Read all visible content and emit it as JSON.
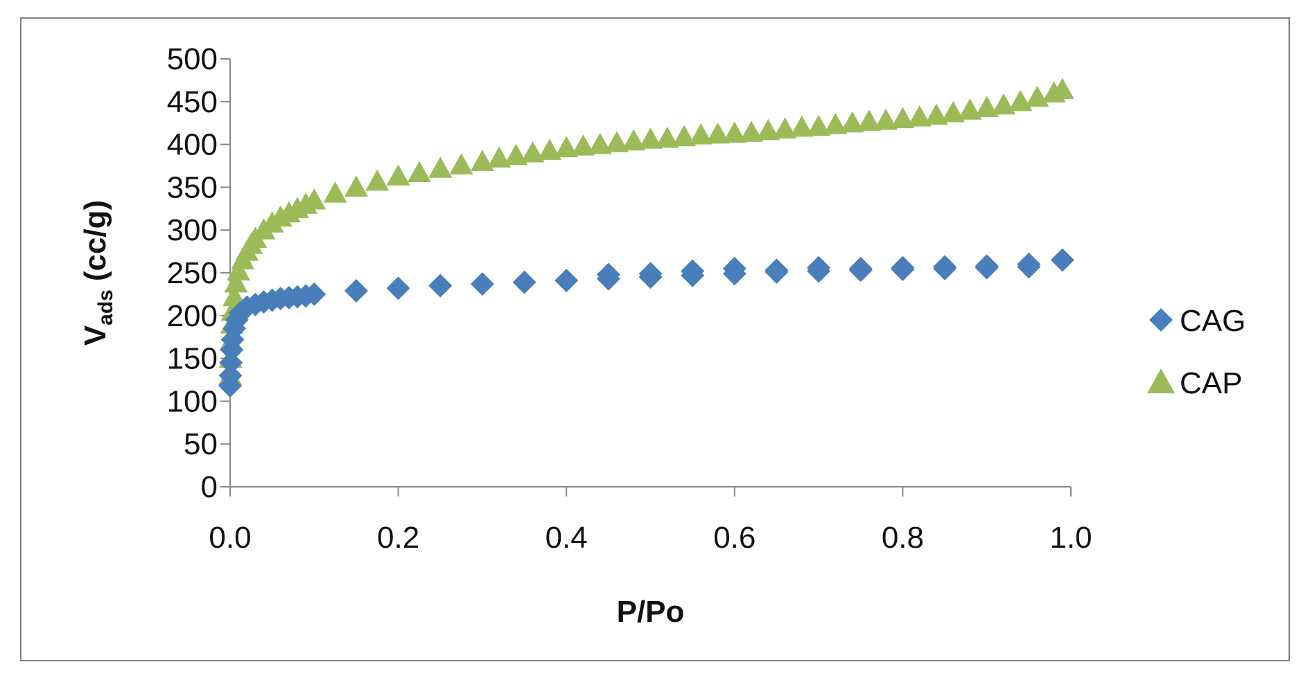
{
  "chart_data": {
    "type": "scatter",
    "xlabel": "P/Po",
    "ylabel": {
      "main": "V",
      "sub": "ads",
      "unit": "(cc/g)"
    },
    "xlim": [
      0,
      1
    ],
    "ylim": [
      0,
      500
    ],
    "x_ticks": [
      "0.0",
      "0.2",
      "0.4",
      "0.6",
      "0.8",
      "1.0"
    ],
    "y_ticks": [
      "0",
      "50",
      "100",
      "150",
      "200",
      "250",
      "300",
      "350",
      "400",
      "450",
      "500"
    ],
    "legend_position": "right",
    "grid": false,
    "series": [
      {
        "name": "CAG",
        "marker": "diamond",
        "color": "#4a7ebb",
        "x": [
          0.0,
          0.0005,
          0.001,
          0.002,
          0.003,
          0.005,
          0.008,
          0.012,
          0.02,
          0.03,
          0.04,
          0.05,
          0.06,
          0.07,
          0.08,
          0.09,
          0.1,
          0.15,
          0.2,
          0.25,
          0.3,
          0.35,
          0.4,
          0.45,
          0.45,
          0.5,
          0.5,
          0.55,
          0.55,
          0.6,
          0.6,
          0.65,
          0.65,
          0.7,
          0.7,
          0.75,
          0.75,
          0.8,
          0.8,
          0.85,
          0.85,
          0.9,
          0.9,
          0.95,
          0.95,
          0.99
        ],
        "y": [
          118,
          130,
          145,
          160,
          172,
          185,
          195,
          203,
          210,
          213,
          216,
          218,
          220,
          221,
          222,
          223,
          225,
          229,
          232,
          235,
          237,
          239,
          241,
          243,
          248,
          245,
          249,
          247,
          252,
          249,
          255,
          251,
          253,
          252,
          256,
          253,
          255,
          254,
          256,
          255,
          257,
          256,
          258,
          257,
          260,
          265
        ]
      },
      {
        "name": "CAP",
        "marker": "triangle",
        "color": "#9bbb59",
        "x": [
          0.0,
          0.0005,
          0.001,
          0.002,
          0.003,
          0.005,
          0.007,
          0.01,
          0.015,
          0.02,
          0.025,
          0.03,
          0.04,
          0.05,
          0.06,
          0.07,
          0.08,
          0.09,
          0.1,
          0.125,
          0.15,
          0.175,
          0.2,
          0.225,
          0.25,
          0.275,
          0.3,
          0.32,
          0.34,
          0.36,
          0.38,
          0.4,
          0.42,
          0.44,
          0.46,
          0.48,
          0.5,
          0.52,
          0.54,
          0.56,
          0.58,
          0.6,
          0.62,
          0.64,
          0.66,
          0.68,
          0.7,
          0.72,
          0.74,
          0.76,
          0.78,
          0.8,
          0.82,
          0.84,
          0.86,
          0.88,
          0.9,
          0.92,
          0.94,
          0.96,
          0.98,
          0.99
        ],
        "y": [
          130,
          150,
          170,
          190,
          205,
          222,
          238,
          252,
          265,
          275,
          283,
          290,
          300,
          308,
          315,
          320,
          325,
          330,
          335,
          343,
          350,
          357,
          363,
          367,
          372,
          376,
          380,
          384,
          387,
          390,
          393,
          396,
          398,
          400,
          402,
          404,
          406,
          407,
          409,
          411,
          412,
          413,
          414,
          416,
          418,
          420,
          421,
          423,
          425,
          427,
          428,
          430,
          432,
          434,
          437,
          440,
          443,
          446,
          450,
          455,
          460,
          464
        ]
      }
    ]
  }
}
